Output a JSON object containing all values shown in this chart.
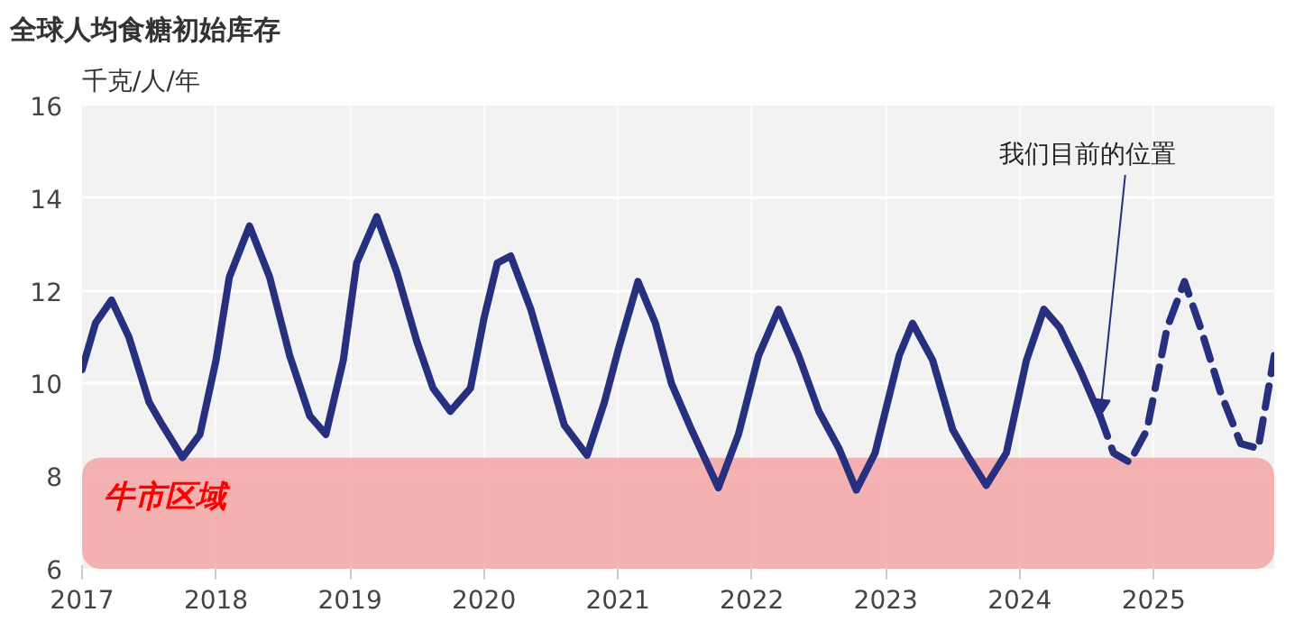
{
  "chart_data": {
    "type": "line",
    "title": "全球人均食糖初始库存",
    "ylabel": "千克/人/年",
    "xlim": [
      2017,
      2025.9
    ],
    "ylim": [
      6,
      16
    ],
    "xticks": [
      2017,
      2018,
      2019,
      2020,
      2021,
      2022,
      2023,
      2024,
      2025
    ],
    "yticks": [
      6,
      8,
      10,
      12,
      14,
      16
    ],
    "grid": true,
    "series": [
      {
        "color": "#27307f",
        "line_style": "solid",
        "x": [
          2017.0,
          2017.1,
          2017.22,
          2017.35,
          2017.5,
          2017.6,
          2017.75,
          2017.88,
          2018.0,
          2018.1,
          2018.25,
          2018.4,
          2018.55,
          2018.7,
          2018.82,
          2018.95,
          2019.05,
          2019.2,
          2019.35,
          2019.5,
          2019.62,
          2019.75,
          2019.9,
          2020.0,
          2020.1,
          2020.2,
          2020.35,
          2020.48,
          2020.6,
          2020.77,
          2020.9,
          2021.0,
          2021.15,
          2021.28,
          2021.4,
          2021.55,
          2021.75,
          2021.9,
          2022.05,
          2022.2,
          2022.35,
          2022.5,
          2022.65,
          2022.78,
          2022.92,
          2023.1,
          2023.2,
          2023.35,
          2023.5,
          2023.62,
          2023.75,
          2023.9,
          2024.05,
          2024.18,
          2024.3,
          2024.45,
          2024.6
        ],
        "values": [
          10.3,
          11.3,
          11.8,
          11.0,
          9.6,
          9.1,
          8.4,
          8.9,
          10.5,
          12.3,
          13.4,
          12.3,
          10.6,
          9.3,
          8.9,
          10.5,
          12.6,
          13.6,
          12.4,
          10.9,
          9.9,
          9.4,
          9.9,
          11.4,
          12.6,
          12.75,
          11.6,
          10.3,
          9.1,
          8.45,
          9.6,
          10.7,
          12.2,
          11.3,
          10.0,
          9.0,
          7.75,
          8.9,
          10.6,
          11.6,
          10.6,
          9.4,
          8.6,
          7.7,
          8.5,
          10.6,
          11.3,
          10.5,
          9.0,
          8.4,
          7.8,
          8.5,
          10.5,
          11.6,
          11.2,
          10.3,
          9.3
        ]
      },
      {
        "color": "#27307f",
        "line_style": "dashed",
        "x": [
          2024.6,
          2024.7,
          2024.82,
          2024.95,
          2025.1,
          2025.23,
          2025.35,
          2025.5,
          2025.65,
          2025.78,
          2025.9
        ],
        "values": [
          9.3,
          8.5,
          8.3,
          9.0,
          11.2,
          12.2,
          11.2,
          9.8,
          8.7,
          8.6,
          10.6
        ]
      }
    ],
    "bands": [
      {
        "axis": "y",
        "from": 6,
        "to": 8.4,
        "label": "牛市区域",
        "color": "#f4a6a6"
      }
    ],
    "annotations": [
      {
        "text": "我们目前的位置",
        "x": 2024.6,
        "y": 9.3
      }
    ]
  }
}
